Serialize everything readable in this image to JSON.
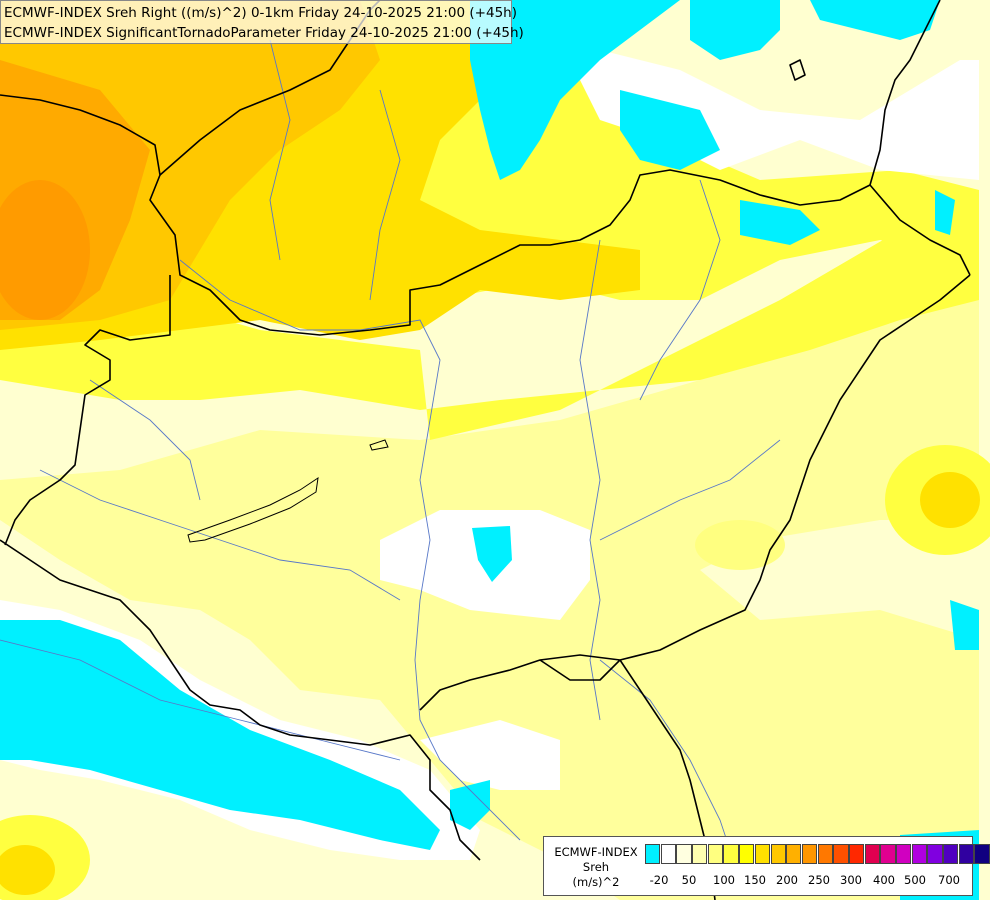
{
  "header": {
    "line1": "ECMWF-INDEX Sreh Right ((m/s)^2) 0-1km Friday 24-10-2025 21:00 (+45h)",
    "line2": "ECMWF-INDEX SignificantTornadoParameter Friday 24-10-2025 21:00 (+45h)"
  },
  "legend": {
    "title_line1": "ECMWF-INDEX",
    "title_line2": "Sreh",
    "title_line3": "(m/s)^2",
    "colors": [
      "#00f0ff",
      "#ffffff",
      "#ffffe0",
      "#ffffb0",
      "#ffff80",
      "#ffff40",
      "#ffff00",
      "#ffe000",
      "#ffc800",
      "#ffb000",
      "#ff9600",
      "#ff7800",
      "#ff5000",
      "#ff2800",
      "#e00050",
      "#e00090",
      "#d000c0",
      "#b000e0",
      "#8000e0",
      "#5000c0",
      "#3000a0",
      "#100080"
    ],
    "tick_labels": [
      "-20",
      "50",
      "100",
      "150",
      "200",
      "250",
      "300",
      "400",
      "500",
      "700"
    ]
  },
  "map_colors": {
    "cyan": "#00f0ff",
    "white": "#ffffff",
    "pale_yellow": "#ffffd0",
    "light_yellow": "#ffff9c",
    "yellow": "#ffff40",
    "deep_yellow": "#ffe100",
    "orange_yellow": "#ffc800",
    "orange": "#ffaa00",
    "border": "#000000",
    "river": "#5878c8"
  }
}
